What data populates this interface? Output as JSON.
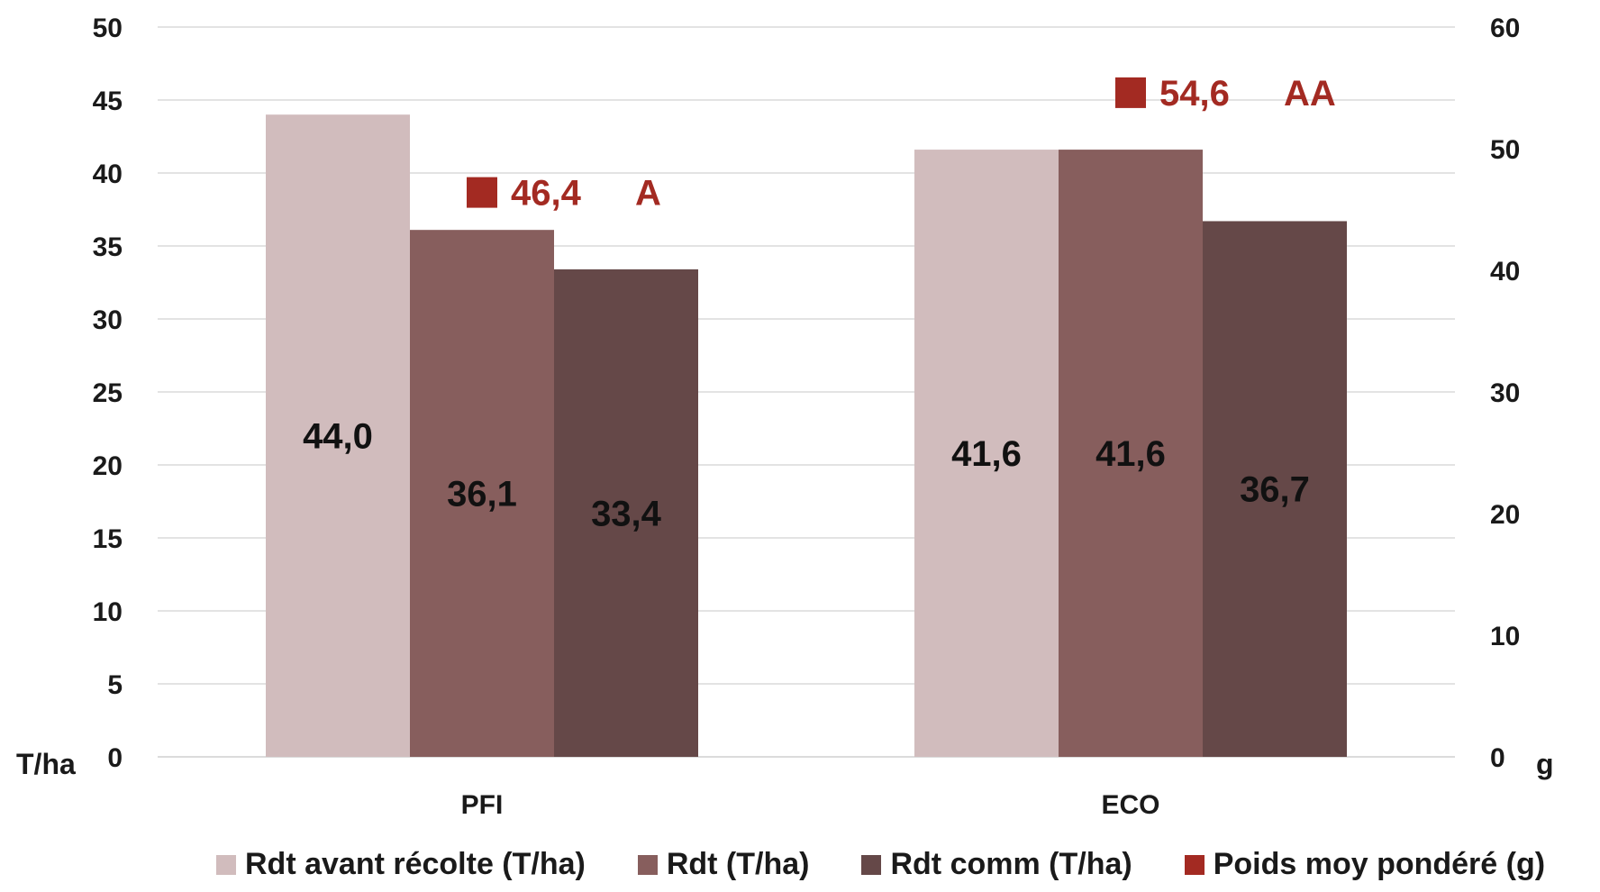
{
  "chart_data": {
    "type": "bar",
    "categories": [
      "PFI",
      "ECO"
    ],
    "series": [
      {
        "name": "Rdt avant récolte (T/ha)",
        "values": [
          44.0,
          41.6
        ],
        "labels": [
          "44,0",
          "41,6"
        ],
        "color": "#d1bcbd"
      },
      {
        "name": "Rdt (T/ha)",
        "values": [
          36.1,
          41.6
        ],
        "labels": [
          "36,1",
          "41,6"
        ],
        "color": "#875e5d"
      },
      {
        "name": "Rdt comm (T/ha)",
        "values": [
          33.4,
          36.7
        ],
        "labels": [
          "33,4",
          "36,7"
        ],
        "color": "#654848"
      }
    ],
    "secondary_series": {
      "name": "Poids moy pondéré (g)",
      "type": "marker",
      "values": [
        46.4,
        54.6
      ],
      "labels": [
        "46,4",
        "54,6"
      ],
      "group_letters": [
        "A",
        "AA"
      ],
      "color": "#a32a22"
    },
    "y_left": {
      "label": "T/ha",
      "min": 0,
      "max": 50,
      "step": 5,
      "ticks": [
        "0",
        "5",
        "10",
        "15",
        "20",
        "25",
        "30",
        "35",
        "40",
        "45",
        "50"
      ]
    },
    "y_right": {
      "label": "g",
      "min": 0,
      "max": 60,
      "step": 10,
      "ticks": [
        "0",
        "10",
        "20",
        "30",
        "40",
        "50",
        "60"
      ]
    },
    "grid": true,
    "legend_position": "bottom"
  }
}
